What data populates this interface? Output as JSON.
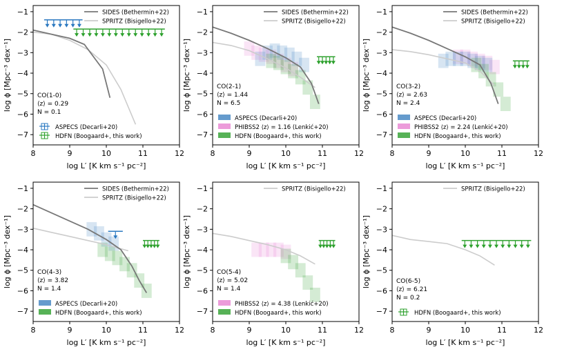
{
  "common": {
    "x_axis": {
      "min": 8,
      "max": 12,
      "ticks": [
        8,
        9,
        10,
        11,
        12
      ]
    },
    "y_axis": {
      "min": -7.5,
      "max": -0.7,
      "ticks": [
        -7,
        -6,
        -5,
        -4,
        -3,
        -2,
        -1
      ]
    },
    "ylabel": "log ϕ [Mpc⁻³ dex⁻¹]",
    "xlabel": "log L′ [K km s⁻¹ pc⁻²]",
    "colors": {
      "sides": "#777777",
      "spritz": "#cccccc",
      "aspecs": "#4a8ac4",
      "phibss2": "#e98ad4",
      "hdfn": "#3aa53a",
      "aspecs_ul": "#2a78c0",
      "hdfn_ul": "#2ca02c"
    }
  },
  "chart_data": [
    {
      "type": "line",
      "title": "CO(1-0)",
      "info": {
        "transition": "CO(1-0)",
        "z_line": "⟨z⟩ = 0.29",
        "n_line": "N = 0.1"
      },
      "legend_top": {
        "sides": "SIDES (Bethermin+22)",
        "spritz": "SPRITZ (Bisigello+22)"
      },
      "legend_bottom": [
        {
          "kind": "ul_blue",
          "label": "ASPECS (Decarli+20)"
        },
        {
          "kind": "ul_green",
          "label": "HDFN (Boogaard+, this work)"
        }
      ],
      "sides": {
        "x": [
          8.0,
          8.5,
          9.0,
          9.4,
          9.9,
          10.1
        ],
        "y": [
          -1.9,
          -2.1,
          -2.3,
          -2.6,
          -3.8,
          -5.2
        ]
      },
      "spritz": {
        "x": [
          8.0,
          8.5,
          9.0,
          9.5,
          10.0,
          10.4,
          10.8
        ],
        "y": [
          -2.0,
          -2.1,
          -2.4,
          -2.85,
          -3.6,
          -4.8,
          -6.5
        ]
      },
      "aspecs_boxes": [],
      "phibss_boxes": [],
      "hdfn_boxes": [],
      "aspecs_ul": {
        "x0": 8.3,
        "x1": 9.35,
        "y": -1.4,
        "n": 6
      },
      "hdfn_ul": {
        "x0": 9.1,
        "x1": 11.6,
        "y": -1.85,
        "n": 14
      }
    },
    {
      "type": "line",
      "title": "CO(2-1)",
      "info": {
        "transition": "CO(2-1)",
        "z_line": "⟨z⟩ = 1.44",
        "n_line": "N = 6.5"
      },
      "legend_top": {
        "sides": "SIDES (Bethermin+22)",
        "spritz": "SPRITZ (Bisigello+22)"
      },
      "legend_bottom": [
        {
          "kind": "box_blue",
          "label": "ASPECS (Decarli+20)"
        },
        {
          "kind": "box_pink",
          "label": "PHIBSS2 ⟨z⟩ = 1.16 (Lenkić+20)"
        },
        {
          "kind": "box_green",
          "label": "HDFN (Boogaard+, this work)"
        }
      ],
      "sides": {
        "x": [
          8.0,
          8.5,
          9.0,
          9.5,
          10.0,
          10.4,
          10.7,
          10.9
        ],
        "y": [
          -1.75,
          -2.05,
          -2.4,
          -2.8,
          -3.25,
          -3.7,
          -4.5,
          -5.5
        ]
      },
      "spritz": {
        "x": [
          8.0,
          8.5,
          9.0,
          9.5,
          10.0,
          10.4,
          10.8
        ],
        "y": [
          -2.5,
          -2.65,
          -2.9,
          -3.3,
          -3.75,
          -4.2,
          -4.7
        ]
      },
      "aspecs_boxes": [
        [
          9.3,
          -3.3
        ],
        [
          9.5,
          -3.0
        ],
        [
          9.7,
          -2.9
        ],
        [
          9.9,
          -3.0
        ],
        [
          10.1,
          -3.1
        ],
        [
          10.3,
          -3.3
        ],
        [
          10.5,
          -3.6
        ]
      ],
      "phibss_boxes": [
        [
          9.0,
          -2.8
        ],
        [
          9.2,
          -3.0
        ],
        [
          9.4,
          -3.1
        ],
        [
          9.6,
          -3.2
        ],
        [
          9.8,
          -3.4
        ],
        [
          10.0,
          -3.6
        ],
        [
          10.2,
          -3.8
        ]
      ],
      "hdfn_boxes": [
        [
          9.6,
          -3.4
        ],
        [
          9.8,
          -3.5
        ],
        [
          10.0,
          -3.7
        ],
        [
          10.2,
          -3.9
        ],
        [
          10.4,
          -4.2
        ],
        [
          10.6,
          -4.7
        ],
        [
          10.8,
          -5.4
        ]
      ],
      "aspecs_ul": null,
      "hdfn_ul": {
        "x0": 10.85,
        "x1": 11.35,
        "y": -3.2,
        "n": 5
      }
    },
    {
      "type": "line",
      "title": "CO(3-2)",
      "info": {
        "transition": "CO(3-2)",
        "z_line": "⟨z⟩ = 2.63",
        "n_line": "N = 2.4"
      },
      "legend_top": {
        "sides": "SIDES (Bethermin+22)",
        "spritz": "SPRITZ (Bisigello+22)"
      },
      "legend_bottom": [
        {
          "kind": "box_blue",
          "label": "ASPECS (Decarli+20)"
        },
        {
          "kind": "box_pink",
          "label": "PHIBSS2 ⟨z⟩ = 2.24 (Lenkić+20)"
        },
        {
          "kind": "box_green",
          "label": "HDFN (Boogaard+, this work)"
        }
      ],
      "sides": {
        "x": [
          8.0,
          8.5,
          9.0,
          9.5,
          10.0,
          10.4,
          10.7,
          10.9
        ],
        "y": [
          -1.75,
          -2.05,
          -2.4,
          -2.8,
          -3.2,
          -3.6,
          -4.5,
          -5.5
        ]
      },
      "spritz": {
        "x": [
          8.0,
          8.5,
          9.0,
          9.5,
          10.0,
          10.4,
          10.8
        ],
        "y": [
          -2.85,
          -2.95,
          -3.1,
          -3.3,
          -3.5,
          -3.9,
          -4.6
        ]
      },
      "aspecs_boxes": [
        [
          9.4,
          -3.4
        ],
        [
          9.6,
          -3.3
        ],
        [
          9.8,
          -3.3
        ],
        [
          10.0,
          -3.3
        ],
        [
          10.2,
          -3.4
        ],
        [
          10.4,
          -3.5
        ],
        [
          10.6,
          -3.6
        ]
      ],
      "phibss_boxes": [
        [
          9.8,
          -3.2
        ],
        [
          10.0,
          -3.2
        ],
        [
          10.2,
          -3.3
        ],
        [
          10.4,
          -3.4
        ],
        [
          10.6,
          -3.5
        ],
        [
          10.8,
          -3.7
        ]
      ],
      "hdfn_boxes": [
        [
          10.3,
          -3.6
        ],
        [
          10.5,
          -3.9
        ],
        [
          10.7,
          -4.3
        ],
        [
          10.9,
          -4.8
        ],
        [
          11.1,
          -5.5
        ]
      ],
      "aspecs_ul": null,
      "hdfn_ul": {
        "x0": 11.3,
        "x1": 11.75,
        "y": -3.4,
        "n": 4
      }
    },
    {
      "type": "line",
      "title": "CO(4-3)",
      "info": {
        "transition": "CO(4-3)",
        "z_line": "⟨z⟩ = 3.82",
        "n_line": "N = 1.4"
      },
      "legend_top": {
        "sides": "SIDES (Bethermin+22)",
        "spritz": "SPRITZ (Bisigello+22)"
      },
      "legend_bottom": [
        {
          "kind": "box_blue",
          "label": "ASPECS (Decarli+20)"
        },
        {
          "kind": "box_green",
          "label": "HDFN (Boogaard+, this work)"
        }
      ],
      "sides": {
        "x": [
          8.0,
          8.5,
          9.0,
          9.5,
          10.0,
          10.4,
          10.7,
          10.9,
          11.1
        ],
        "y": [
          -1.8,
          -2.2,
          -2.6,
          -3.0,
          -3.5,
          -4.0,
          -4.8,
          -5.5,
          -6.1
        ]
      },
      "spritz": {
        "x": [
          8.0,
          8.5,
          9.0,
          9.5,
          10.0,
          10.3,
          10.6
        ],
        "y": [
          -2.95,
          -3.15,
          -3.35,
          -3.55,
          -3.75,
          -3.9,
          -4.05
        ]
      },
      "aspecs_boxes": [
        [
          9.6,
          -3.0
        ],
        [
          9.8,
          -3.2
        ],
        [
          10.0,
          -3.5
        ],
        [
          10.2,
          -3.7
        ]
      ],
      "phibss_boxes": [],
      "hdfn_boxes": [
        [
          9.9,
          -4.0
        ],
        [
          10.1,
          -4.2
        ],
        [
          10.3,
          -4.4
        ],
        [
          10.5,
          -4.7
        ],
        [
          10.7,
          -5.0
        ],
        [
          10.9,
          -5.5
        ],
        [
          11.1,
          -6.0
        ]
      ],
      "aspecs_ul": {
        "x0": 10.05,
        "x1": 10.45,
        "y": -3.1,
        "n": 1
      },
      "hdfn_ul": {
        "x0": 11.0,
        "x1": 11.45,
        "y": -3.55,
        "n": 5
      }
    },
    {
      "type": "line",
      "title": "CO(5-4)",
      "info": {
        "transition": "CO(5-4)",
        "z_line": "⟨z⟩ = 5.02",
        "n_line": "N = 1.4"
      },
      "legend_top": {
        "sides": null,
        "spritz": "SPRITZ (Bisigello+22)"
      },
      "legend_bottom": [
        {
          "kind": "box_pink",
          "label": "PHIBSS2 ⟨z⟩ = 4.38 (Lenkić+20)"
        },
        {
          "kind": "box_green",
          "label": "HDFN (Boogaard+, this work)"
        }
      ],
      "sides": null,
      "spritz": {
        "x": [
          8.0,
          8.5,
          9.0,
          9.5,
          10.0,
          10.4,
          10.8
        ],
        "y": [
          -3.2,
          -3.35,
          -3.55,
          -3.75,
          -4.0,
          -4.3,
          -4.7
        ]
      },
      "aspecs_boxes": [],
      "phibss_boxes": [
        [
          9.2,
          -4.0
        ],
        [
          9.4,
          -4.0
        ],
        [
          9.6,
          -4.0
        ],
        [
          9.8,
          -4.0
        ],
        [
          10.0,
          -4.1
        ]
      ],
      "hdfn_boxes": [
        [
          10.0,
          -4.3
        ],
        [
          10.2,
          -4.6
        ],
        [
          10.4,
          -5.0
        ],
        [
          10.6,
          -5.6
        ],
        [
          10.8,
          -6.2
        ]
      ],
      "aspecs_ul": null,
      "hdfn_ul": {
        "x0": 10.9,
        "x1": 11.35,
        "y": -3.55,
        "n": 5
      }
    },
    {
      "type": "line",
      "title": "CO(6-5)",
      "info": {
        "transition": "CO(6-5)",
        "z_line": "⟨z⟩ = 6.21",
        "n_line": "N = 0.2"
      },
      "legend_top": {
        "sides": null,
        "spritz": "SPRITZ (Bisigello+22)"
      },
      "legend_bottom": [
        {
          "kind": "ul_green",
          "label": "HDFN (Boogaard+, this work)"
        }
      ],
      "sides": null,
      "spritz": {
        "x": [
          8.0,
          8.5,
          9.0,
          9.5,
          10.0,
          10.4,
          10.8
        ],
        "y": [
          -3.3,
          -3.5,
          -3.6,
          -3.7,
          -4.0,
          -4.3,
          -4.75
        ]
      },
      "aspecs_boxes": [],
      "phibss_boxes": [],
      "hdfn_boxes": [],
      "aspecs_ul": null,
      "hdfn_ul": {
        "x0": 9.9,
        "x1": 11.8,
        "y": -3.55,
        "n": 11
      }
    }
  ]
}
